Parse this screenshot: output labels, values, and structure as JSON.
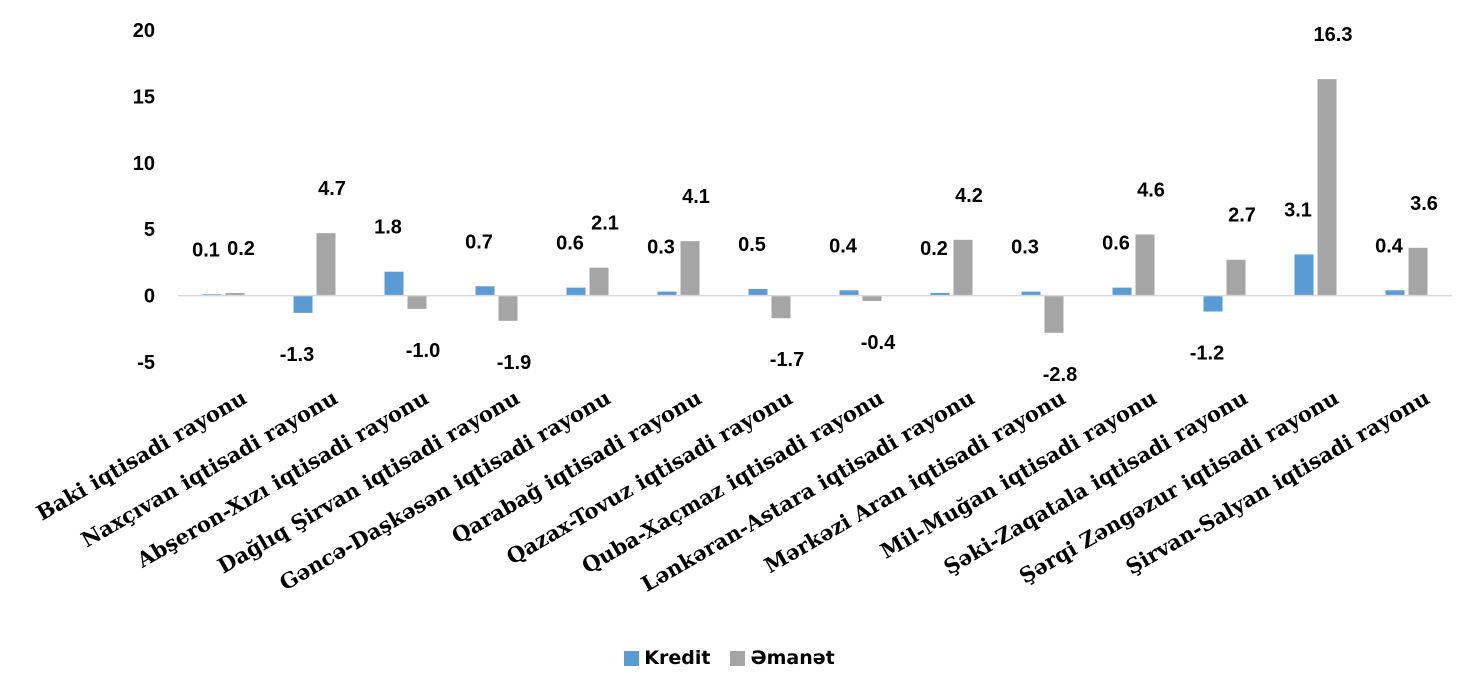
{
  "colors": {
    "Kredit": "#5b9bd5",
    "Əmanət": "#a5a5a5",
    "axis": "#d9d9d9",
    "text": "#000000"
  },
  "chart_data": {
    "type": "bar",
    "title": "",
    "xlabel": "",
    "ylabel": "",
    "ylim": [
      -5,
      20
    ],
    "yticks": [
      20,
      15,
      10,
      5,
      0,
      -5
    ],
    "grid": false,
    "legend_position": "bottom",
    "categories": [
      "Baki iqtisadi rayonu",
      "Naxçıvan iqtisadi rayonu",
      "Abşeron-Xızı iqtisadi rayonu",
      "Dağlıq Şirvan iqtisadi rayonu",
      "Gəncə-Daşkəsən iqtisadi rayonu",
      "Qarabağ iqtisadi rayonu",
      "Qazax-Tovuz iqtisadi rayonu",
      "Quba-Xaçmaz iqtisadi rayonu",
      "Lənkəran-Astara iqtisadi rayonu",
      "Mərkəzi Aran iqtisadi rayonu",
      "Mil-Muğan iqtisadi rayonu",
      "Şəki-Zaqatala iqtisadi rayonu",
      "Şərqi Zəngəzur iqtisadi rayonu",
      "Şirvan-Salyan iqtisadi rayonu"
    ],
    "series": [
      {
        "name": "Kredit",
        "values": [
          0.1,
          -1.3,
          1.8,
          0.7,
          0.6,
          0.3,
          0.5,
          0.4,
          0.2,
          0.3,
          0.6,
          -1.2,
          3.1,
          0.4
        ],
        "labels": [
          "0.1",
          "-1.3",
          "1.8",
          "0.7",
          "0.6",
          "0.3",
          "0.5",
          "0.4",
          "0.2",
          "0.3",
          "0.6",
          "-1.2",
          "3.1",
          "0.4"
        ]
      },
      {
        "name": "Əmanət",
        "values": [
          0.2,
          4.7,
          -1.0,
          -1.9,
          2.1,
          4.1,
          -1.7,
          -0.4,
          4.2,
          -2.8,
          4.6,
          2.7,
          16.3,
          3.6
        ],
        "labels": [
          "0.2",
          "4.7",
          "-1.0",
          "-1.9",
          "2.1",
          "4.1",
          "-1.7",
          "-0.4",
          "4.2",
          "-2.8",
          "4.6",
          "2.7",
          "16.3",
          "3.6"
        ]
      }
    ]
  }
}
